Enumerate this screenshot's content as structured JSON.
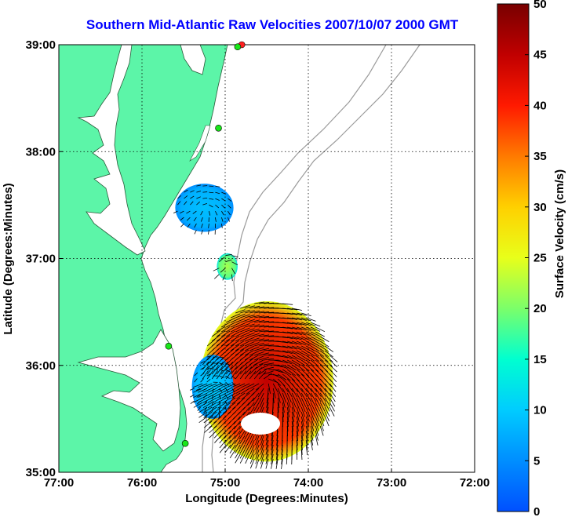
{
  "chart_data": {
    "type": "heatmap",
    "title": "Southern Mid-Atlantic Raw Velocities 2007/10/07 2000 GMT",
    "xlabel": "Longitude (Degrees:Minutes)",
    "ylabel": "Latitude (Degrees:Minutes)",
    "colorbar_label": "Surface Velocity (cm/s)",
    "xlim": [
      -77,
      -72
    ],
    "ylim": [
      35,
      39
    ],
    "x_ticks": [
      {
        "value": -77,
        "label": "77:00"
      },
      {
        "value": -76,
        "label": "76:00"
      },
      {
        "value": -75,
        "label": "75:00"
      },
      {
        "value": -74,
        "label": "74:00"
      },
      {
        "value": -73,
        "label": "73:00"
      },
      {
        "value": -72,
        "label": "72:00"
      }
    ],
    "y_ticks": [
      {
        "value": 35,
        "label": "35:00"
      },
      {
        "value": 36,
        "label": "36:00"
      },
      {
        "value": 37,
        "label": "37:00"
      },
      {
        "value": 38,
        "label": "38:00"
      },
      {
        "value": 39,
        "label": "39:00"
      }
    ],
    "colorbar_range": [
      0,
      50
    ],
    "colorbar_ticks": [
      "0",
      "5",
      "10",
      "15",
      "20",
      "25",
      "30",
      "35",
      "40",
      "45",
      "50"
    ],
    "grid": true,
    "colors": {
      "land": "#5cf5a8",
      "water": "#ffffff",
      "bathymetry": "#9a9a9a",
      "title": "#0000ff",
      "station_green": "#19e619",
      "station_red": "#ff2020"
    },
    "velocity_patches": [
      {
        "name": "delmarva-patch",
        "lon_range": [
          -75.6,
          -74.9
        ],
        "lat_range": [
          37.25,
          37.7
        ],
        "velocity_cms": 9
      },
      {
        "name": "mouth-patch",
        "lon_range": [
          -75.1,
          -74.85
        ],
        "lat_range": [
          36.8,
          37.05
        ],
        "velocity_cms": 22
      },
      {
        "name": "hatteras-high",
        "lon_range": [
          -75.3,
          -73.7
        ],
        "lat_range": [
          35.1,
          36.6
        ],
        "velocity_cms": 45
      },
      {
        "name": "hatteras-low",
        "lon_range": [
          -75.4,
          -74.9
        ],
        "lat_range": [
          35.5,
          36.1
        ],
        "velocity_cms": 10
      }
    ],
    "stations": [
      {
        "lon": -74.8,
        "lat": 39.0,
        "status": "red"
      },
      {
        "lon": -74.85,
        "lat": 38.98,
        "status": "green"
      },
      {
        "lon": -75.08,
        "lat": 38.22,
        "status": "green"
      },
      {
        "lon": -75.68,
        "lat": 36.18,
        "status": "green"
      },
      {
        "lon": -75.48,
        "lat": 35.27,
        "status": "green"
      }
    ]
  }
}
